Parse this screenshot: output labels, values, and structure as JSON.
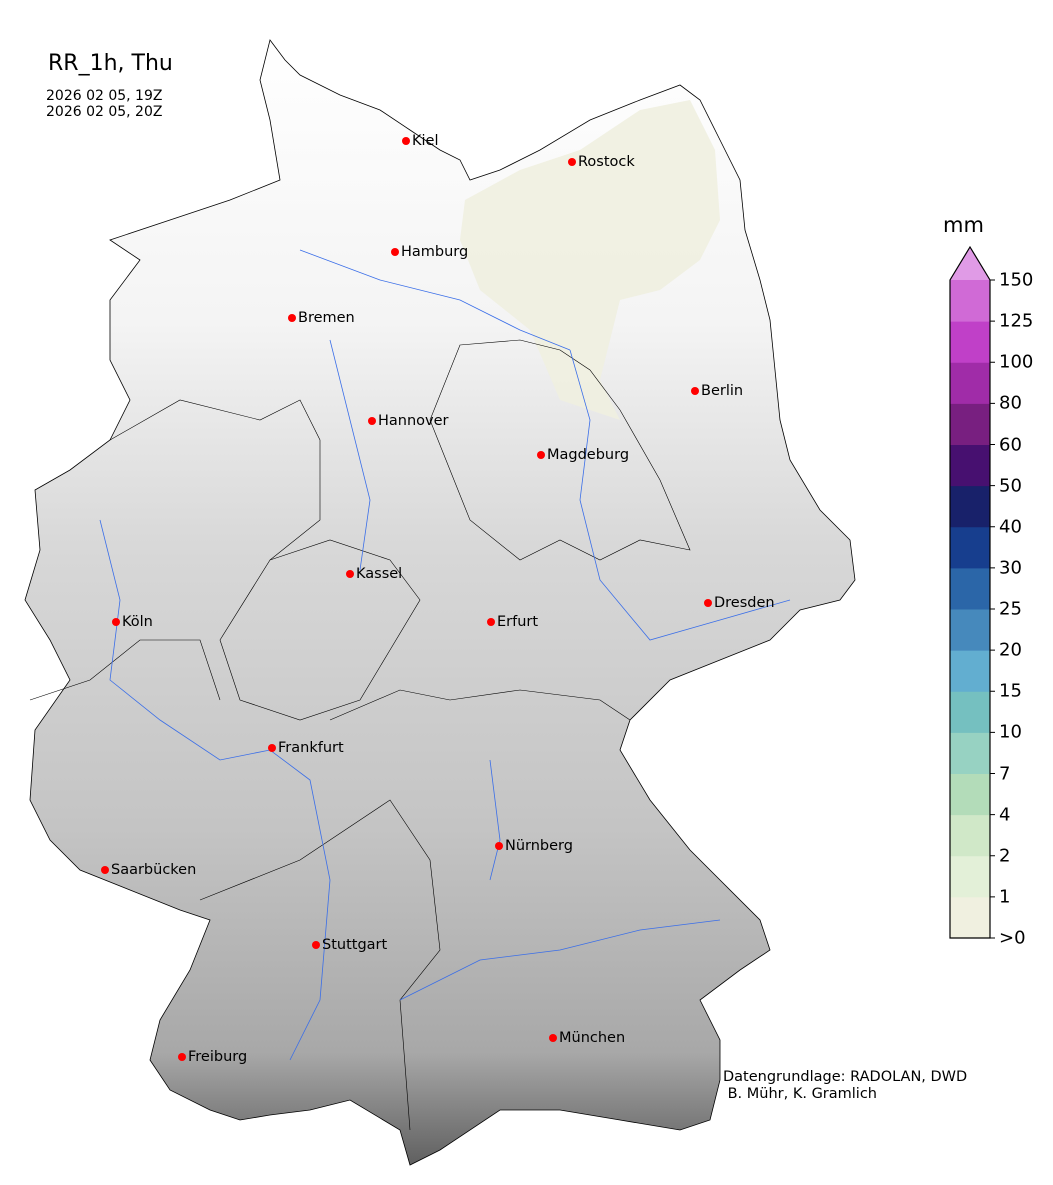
{
  "title": "RR_1h, Thu",
  "valid_from": "2026 02 05, 19Z",
  "valid_to": "2026 02 05, 20Z",
  "colorbar": {
    "unit": "mm",
    "ticks": [
      ">0",
      "1",
      "2",
      "4",
      "7",
      "10",
      "15",
      "20",
      "25",
      "30",
      "40",
      "50",
      "60",
      "80",
      "100",
      "125",
      "150"
    ],
    "colors": [
      "#f0f0e0",
      "#e3f0d8",
      "#d0e8c8",
      "#b3dcb9",
      "#97d2c2",
      "#75c0c0",
      "#62aed0",
      "#4689bc",
      "#2b66a8",
      "#173e8e",
      "#18216a",
      "#471070",
      "#781f80",
      "#a02ca8",
      "#c040c8",
      "#d06ad6"
    ],
    "extend_color": "#e09be6"
  },
  "cities": [
    "Kiel",
    "Rostock",
    "Hamburg",
    "Bremen",
    "Berlin",
    "Hannover",
    "Magdeburg",
    "Kassel",
    "Köln",
    "Erfurt",
    "Dresden",
    "Frankfurt",
    "Nürnberg",
    "Saarbücken",
    "Stuttgart",
    "München",
    "Freiburg"
  ],
  "credit": "Datengrundlage: RADOLAN, DWD\n B. Mühr, K. Gramlich",
  "colors": {
    "city_marker": "#ff0000",
    "rivers": "#3a6ee8",
    "no_rain_terrain": "#808080"
  }
}
